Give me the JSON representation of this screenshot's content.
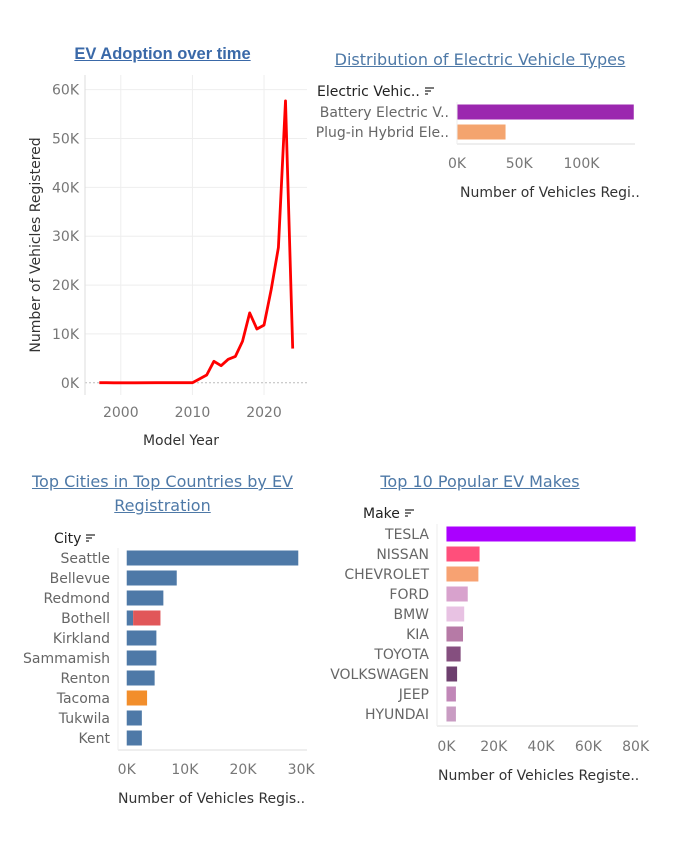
{
  "chart_data": [
    {
      "type": "line",
      "title": "EV Adoption over time",
      "xlabel": "Model Year",
      "ylabel": "Number of Vehicles Registered",
      "xlim": [
        1995,
        2026
      ],
      "ylim": [
        -2500,
        63000
      ],
      "x_ticks": [
        2000,
        2010,
        2020
      ],
      "x_tick_labels": [
        "2000",
        "2010",
        "2020"
      ],
      "y_ticks": [
        0,
        10000,
        20000,
        30000,
        40000,
        50000,
        60000
      ],
      "y_tick_labels": [
        "0K",
        "10K",
        "20K",
        "30K",
        "40K",
        "50K",
        "60K"
      ],
      "grid": true,
      "color": "#ff0000",
      "x": [
        1997,
        1998,
        1999,
        2000,
        2002,
        2005,
        2008,
        2010,
        2011,
        2012,
        2013,
        2014,
        2015,
        2016,
        2017,
        2018,
        2019,
        2020,
        2021,
        2022,
        2023,
        2024
      ],
      "y": [
        10,
        10,
        5,
        5,
        5,
        10,
        20,
        25,
        800,
        1600,
        4400,
        3500,
        4800,
        5400,
        8500,
        14300,
        11000,
        11800,
        19100,
        27700,
        57700,
        7000
      ]
    },
    {
      "type": "bar",
      "orientation": "horizontal",
      "title": "Distribution of Electric Vehicle Types",
      "header": "Electric Vehic..",
      "xlabel": "Number of Vehicles Regi..",
      "categories": [
        "Battery Electric V..",
        "Plug-in Hybrid Ele.."
      ],
      "values": [
        142000,
        39000
      ],
      "colors": [
        "#9b27af",
        "#f4a46e"
      ],
      "xlim": [
        0,
        143000
      ],
      "x_ticks": [
        0,
        50000,
        100000
      ],
      "x_tick_labels": [
        "0K",
        "50K",
        "100K"
      ]
    },
    {
      "type": "bar",
      "orientation": "horizontal",
      "title": "Top Cities in Top Countries by EV Registration",
      "header": "City",
      "xlabel": "Number of Vehicles Regis..",
      "categories": [
        "Seattle",
        "Bellevue",
        "Redmond",
        "Bothell",
        "Kirkland",
        "Sammamish",
        "Renton",
        "Tacoma",
        "Tukwila",
        "Kent"
      ],
      "stacked": true,
      "series": [
        {
          "color": "#4e79a7",
          "values": [
            29500,
            8600,
            6300,
            1100,
            5100,
            5100,
            4800,
            0,
            2600,
            2600
          ]
        },
        {
          "color": "#e15759",
          "values": [
            0,
            0,
            0,
            4700,
            0,
            0,
            0,
            0,
            0,
            0
          ]
        },
        {
          "color": "#f28e2b",
          "values": [
            0,
            0,
            0,
            0,
            0,
            0,
            0,
            3500,
            0,
            0
          ]
        }
      ],
      "xlim": [
        -1500,
        31000
      ],
      "x_ticks": [
        0,
        10000,
        20000,
        30000
      ],
      "x_tick_labels": [
        "0K",
        "10K",
        "20K",
        "30K"
      ]
    },
    {
      "type": "bar",
      "orientation": "horizontal",
      "title": "Top 10 Popular EV Makes",
      "header": "Make",
      "xlabel": "Number of Vehicles Registe..",
      "categories": [
        "TESLA",
        "NISSAN",
        "CHEVROLET",
        "FORD",
        "BMW",
        "KIA",
        "TOYOTA",
        "VOLKSWAGEN",
        "JEEP",
        "HYUNDAI"
      ],
      "values": [
        80000,
        14000,
        13500,
        9000,
        7500,
        7000,
        6000,
        4500,
        4000,
        4000
      ],
      "colors": [
        "#aa00ff",
        "#ff4f7b",
        "#f7a272",
        "#d8a2cd",
        "#e8c2e3",
        "#b67aa6",
        "#854f7f",
        "#6d3f6e",
        "#c187b8",
        "#c99cc3"
      ],
      "xlim": [
        -4000,
        81000
      ],
      "x_ticks": [
        0,
        20000,
        40000,
        60000,
        80000
      ],
      "x_tick_labels": [
        "0K",
        "20K",
        "40K",
        "60K",
        "80K"
      ]
    }
  ]
}
